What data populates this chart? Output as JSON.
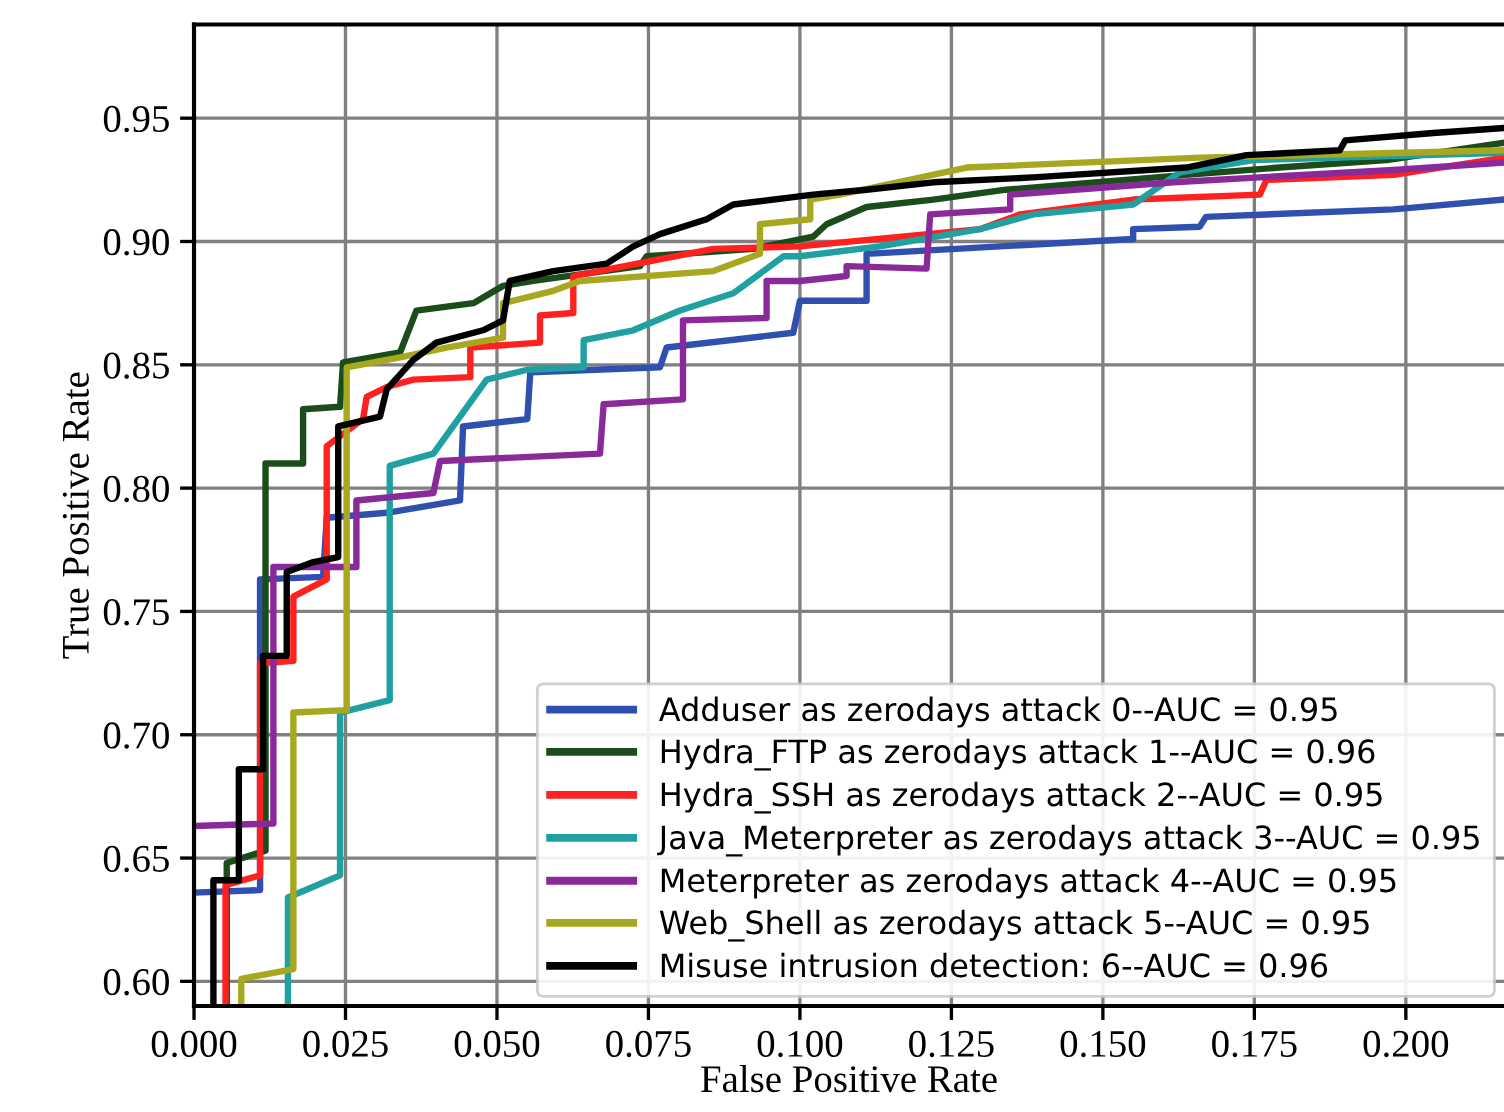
{
  "chart_data": {
    "type": "line",
    "xlabel": "False Positive Rate",
    "ylabel": "True Positive Rate",
    "xlim": [
      0,
      0.2162
    ],
    "ylim": [
      0.59,
      0.988
    ],
    "xticks": [
      {
        "value": 0,
        "label": "0.000"
      },
      0.025,
      {
        "value": 0.05,
        "label": "0.050"
      },
      0.075,
      {
        "value": 0.1,
        "label": "0.100"
      },
      0.125,
      {
        "value": 0.15,
        "label": "0.150"
      },
      0.175,
      {
        "value": 0.2,
        "label": "0.200"
      }
    ],
    "yticks": [
      {
        "value": 0.6,
        "label": "0.60"
      },
      0.65,
      {
        "value": 0.7,
        "label": "0.70"
      },
      0.75,
      {
        "value": 0.8,
        "label": "0.80"
      },
      0.85,
      {
        "value": 0.9,
        "label": "0.90"
      },
      0.95
    ],
    "grid": true,
    "legend": "bottom right",
    "marker": "none",
    "line_style": "solid",
    "series": [
      {
        "name": "Adduser as zerodays attack 0--AUC = 0.95",
        "color": "#3050b0",
        "x": [
          0,
          0.0109,
          0.0109,
          0.0213,
          0.0219,
          0.0318,
          0.0439,
          0.0444,
          0.055,
          0.0555,
          0.0769,
          0.078,
          0.0989,
          0.1,
          0.111,
          0.111,
          0.133,
          0.155,
          0.155,
          0.166,
          0.167,
          0.198,
          0.2162
        ],
        "values": [
          0.636,
          0.637,
          0.763,
          0.764,
          0.788,
          0.79,
          0.795,
          0.825,
          0.828,
          0.847,
          0.849,
          0.857,
          0.863,
          0.876,
          0.876,
          0.895,
          0.898,
          0.901,
          0.905,
          0.906,
          0.91,
          0.913,
          0.917
        ]
      },
      {
        "name": "Hydra_FTP as zerodays attack 1--AUC = 0.96",
        "color": "#1a4d1a",
        "x": [
          0.0054,
          0.0054,
          0.0118,
          0.0118,
          0.018,
          0.018,
          0.0241,
          0.0246,
          0.034,
          0.0367,
          0.0461,
          0.051,
          0.056,
          0.0736,
          0.0747,
          0.0923,
          0.1022,
          0.1044,
          0.111,
          0.122,
          0.134,
          0.1638,
          0.1791,
          0.1968,
          0.2162
        ],
        "values": [
          0.59,
          0.648,
          0.653,
          0.81,
          0.81,
          0.832,
          0.833,
          0.851,
          0.855,
          0.872,
          0.875,
          0.882,
          0.884,
          0.89,
          0.894,
          0.897,
          0.902,
          0.907,
          0.914,
          0.917,
          0.921,
          0.927,
          0.93,
          0.933,
          0.94
        ]
      },
      {
        "name": "Hydra_SSH as zerodays attack 2--AUC = 0.95",
        "color": "#ff2020",
        "x": [
          0.0052,
          0.0052,
          0.0109,
          0.0109,
          0.0164,
          0.0164,
          0.0219,
          0.0219,
          0.0279,
          0.0285,
          0.0318,
          0.0362,
          0.0456,
          0.0456,
          0.0571,
          0.0571,
          0.0626,
          0.0626,
          0.0857,
          0.1,
          0.1297,
          0.1363,
          0.155,
          0.1759,
          0.177,
          0.198,
          0.2162
        ],
        "values": [
          0.59,
          0.639,
          0.643,
          0.729,
          0.73,
          0.756,
          0.763,
          0.817,
          0.828,
          0.837,
          0.841,
          0.844,
          0.845,
          0.857,
          0.859,
          0.87,
          0.871,
          0.886,
          0.897,
          0.898,
          0.905,
          0.911,
          0.917,
          0.919,
          0.925,
          0.927,
          0.934
        ]
      },
      {
        "name": "Java_Meterpreter as zerodays attack 3--AUC = 0.95",
        "color": "#20a0a0",
        "x": [
          0.0155,
          0.0155,
          0.0241,
          0.0241,
          0.0323,
          0.0323,
          0.0395,
          0.0483,
          0.055,
          0.0643,
          0.0643,
          0.0725,
          0.0802,
          0.089,
          0.0973,
          0.1,
          0.1132,
          0.1297,
          0.1385,
          0.155,
          0.1627,
          0.1748,
          0.2162
        ],
        "values": [
          0.59,
          0.634,
          0.643,
          0.709,
          0.714,
          0.809,
          0.814,
          0.844,
          0.848,
          0.849,
          0.86,
          0.864,
          0.872,
          0.879,
          0.894,
          0.894,
          0.898,
          0.905,
          0.911,
          0.915,
          0.928,
          0.933,
          0.936
        ]
      },
      {
        "name": "Meterpreter as zerodays attack 4--AUC = 0.95",
        "color": "#8a2a9a",
        "x": [
          0,
          0.0131,
          0.0131,
          0.0268,
          0.0268,
          0.0395,
          0.0406,
          0.067,
          0.0676,
          0.0807,
          0.0807,
          0.0945,
          0.0945,
          0.1,
          0.1077,
          0.1077,
          0.1209,
          0.1215,
          0.1347,
          0.1347,
          0.1616,
          0.1759,
          0.198,
          0.2162
        ],
        "values": [
          0.663,
          0.664,
          0.768,
          0.768,
          0.795,
          0.798,
          0.811,
          0.814,
          0.834,
          0.836,
          0.868,
          0.869,
          0.884,
          0.884,
          0.886,
          0.89,
          0.889,
          0.911,
          0.913,
          0.919,
          0.924,
          0.926,
          0.929,
          0.932
        ]
      },
      {
        "name": "Web_Shell as zerodays attack 5--AUC = 0.95",
        "color": "#a8a820",
        "x": [
          0.0078,
          0.0078,
          0.0164,
          0.0164,
          0.0252,
          0.0252,
          0.034,
          0.0417,
          0.051,
          0.051,
          0.0593,
          0.0637,
          0.0857,
          0.0934,
          0.0934,
          0.1017,
          0.1017,
          0.1066,
          0.1275,
          0.1661,
          0.2162
        ],
        "values": [
          0.59,
          0.601,
          0.605,
          0.709,
          0.71,
          0.849,
          0.853,
          0.857,
          0.861,
          0.875,
          0.88,
          0.884,
          0.888,
          0.895,
          0.907,
          0.909,
          0.917,
          0.919,
          0.93,
          0.934,
          0.937
        ]
      },
      {
        "name": "Misuse intrusion detection: 6--AUC = 0.96",
        "color": "#000000",
        "x": [
          0.0032,
          0.0032,
          0.0074,
          0.0074,
          0.0114,
          0.0114,
          0.0153,
          0.0153,
          0.0197,
          0.0238,
          0.0238,
          0.0307,
          0.0318,
          0.0362,
          0.04,
          0.0477,
          0.051,
          0.0521,
          0.0593,
          0.0681,
          0.0725,
          0.0769,
          0.0846,
          0.089,
          0.1022,
          0.111,
          0.122,
          0.1385,
          0.1638,
          0.1737,
          0.1891,
          0.19,
          0.2045,
          0.2162
        ],
        "values": [
          0.59,
          0.641,
          0.641,
          0.686,
          0.686,
          0.732,
          0.732,
          0.766,
          0.77,
          0.772,
          0.825,
          0.829,
          0.84,
          0.852,
          0.859,
          0.864,
          0.868,
          0.884,
          0.888,
          0.891,
          0.898,
          0.903,
          0.909,
          0.915,
          0.919,
          0.921,
          0.924,
          0.926,
          0.93,
          0.935,
          0.937,
          0.941,
          0.944,
          0.946
        ]
      }
    ]
  }
}
